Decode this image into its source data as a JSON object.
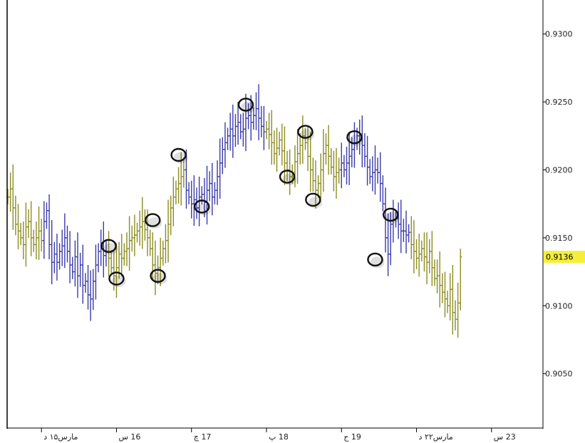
{
  "colors": {
    "background": "#ffffff",
    "axis": "#000000",
    "bullish_bar": "#3a3aa8",
    "bearish_bar": "#8c8c22",
    "marker": "#111111",
    "current_price_bg": "#f5ef3a"
  },
  "chart_data": {
    "type": "ohlc",
    "title": "",
    "xlabel": "",
    "ylabel": "",
    "ylim": [
      0.901,
      0.9325
    ],
    "grid": false,
    "y_axis_position": "right",
    "y_ticks": [
      "0.9300",
      "0.9250",
      "0.9200",
      "0.9150",
      "0.9100",
      "0.9050"
    ],
    "x_ticks": [
      {
        "label": "مارس۱۵ د",
        "bar_index": 13
      },
      {
        "label": "16 س",
        "bar_index": 42
      },
      {
        "label": "17 چ",
        "bar_index": 71
      },
      {
        "label": "18 پ",
        "bar_index": 100
      },
      {
        "label": "19 ج",
        "bar_index": 129
      },
      {
        "label": "مارس۲۲ د",
        "bar_index": 158
      },
      {
        "label": "23 س",
        "bar_index": 187
      }
    ],
    "current_price": "0.9136",
    "series": [
      {
        "segment": "bearish",
        "start_index": 0,
        "closes": [
          0.918,
          0.9186,
          0.9172,
          0.916,
          0.9155,
          0.915,
          0.9145,
          0.9158,
          0.9162,
          0.915,
          0.9145,
          0.915,
          0.9155,
          0.9148
        ]
      },
      {
        "segment": "bullish",
        "start_index": 14,
        "closes": [
          0.9162,
          0.917,
          0.9145,
          0.9132,
          0.9138,
          0.9132,
          0.914,
          0.9144,
          0.915,
          0.914,
          0.913,
          0.9125,
          0.9136,
          0.9122,
          0.913,
          0.9115,
          0.9118,
          0.9108,
          0.9105,
          0.9118,
          0.913,
          0.914,
          0.9144,
          0.9137,
          0.914
        ]
      },
      {
        "segment": "bearish",
        "start_index": 39,
        "closes": [
          0.9135,
          0.9128,
          0.9122,
          0.9128,
          0.9138,
          0.9135,
          0.914,
          0.9142,
          0.9148,
          0.915,
          0.9152,
          0.9155,
          0.9158,
          0.9162,
          0.9156,
          0.915,
          0.9142,
          0.913,
          0.9124,
          0.9128,
          0.9135,
          0.9142,
          0.9148,
          0.916,
          0.9172,
          0.918,
          0.9186,
          0.919,
          0.9195,
          0.92
        ]
      },
      {
        "segment": "bullish",
        "start_index": 69,
        "closes": [
          0.9185,
          0.918,
          0.9175,
          0.9178,
          0.9172,
          0.918,
          0.9182,
          0.9176,
          0.9185,
          0.919,
          0.918,
          0.9185,
          0.9195,
          0.9205,
          0.9215,
          0.922,
          0.9225,
          0.923,
          0.9225,
          0.9232,
          0.9235,
          0.9228,
          0.923,
          0.9238,
          0.924,
          0.9235,
          0.924,
          0.9245,
          0.9238,
          0.9232,
          0.9228
        ]
      },
      {
        "segment": "bearish",
        "start_index": 100,
        "closes": [
          0.923,
          0.9226,
          0.922,
          0.9212,
          0.9216,
          0.9222,
          0.9214,
          0.9205,
          0.92,
          0.9195,
          0.9198,
          0.9206,
          0.9212,
          0.9218,
          0.9225,
          0.922,
          0.921,
          0.92,
          0.9192,
          0.9185,
          0.919,
          0.92,
          0.9212,
          0.9218,
          0.921,
          0.9202,
          0.9195,
          0.9198,
          0.92
        ]
      },
      {
        "segment": "bullish",
        "start_index": 129,
        "closes": [
          0.9205,
          0.92,
          0.9205,
          0.921,
          0.9215,
          0.922,
          0.9225,
          0.9222,
          0.9218,
          0.921,
          0.9202,
          0.9195,
          0.9198,
          0.92,
          0.9198,
          0.919,
          0.9175,
          0.915,
          0.9138,
          0.916,
          0.9163,
          0.9164,
          0.916,
          0.9155,
          0.9155,
          0.9152,
          0.9154
        ]
      },
      {
        "segment": "bearish",
        "start_index": 156,
        "closes": [
          0.9145,
          0.914,
          0.9135,
          0.9138,
          0.9142,
          0.9136,
          0.9132,
          0.914,
          0.9128,
          0.912,
          0.9122,
          0.9115,
          0.911,
          0.9105,
          0.91,
          0.9112,
          0.9095,
          0.909,
          0.9102,
          0.9136
        ]
      }
    ],
    "markers": [
      {
        "bar_index": 39,
        "price": 0.9144
      },
      {
        "bar_index": 42,
        "price": 0.912
      },
      {
        "bar_index": 56,
        "price": 0.9163
      },
      {
        "bar_index": 58,
        "price": 0.9122
      },
      {
        "bar_index": 66,
        "price": 0.9211
      },
      {
        "bar_index": 75,
        "price": 0.9173
      },
      {
        "bar_index": 92,
        "price": 0.9248
      },
      {
        "bar_index": 108,
        "price": 0.9195
      },
      {
        "bar_index": 115,
        "price": 0.9228
      },
      {
        "bar_index": 118,
        "price": 0.9178
      },
      {
        "bar_index": 134,
        "price": 0.9224
      },
      {
        "bar_index": 142,
        "price": 0.9134
      },
      {
        "bar_index": 148,
        "price": 0.9167
      }
    ]
  }
}
